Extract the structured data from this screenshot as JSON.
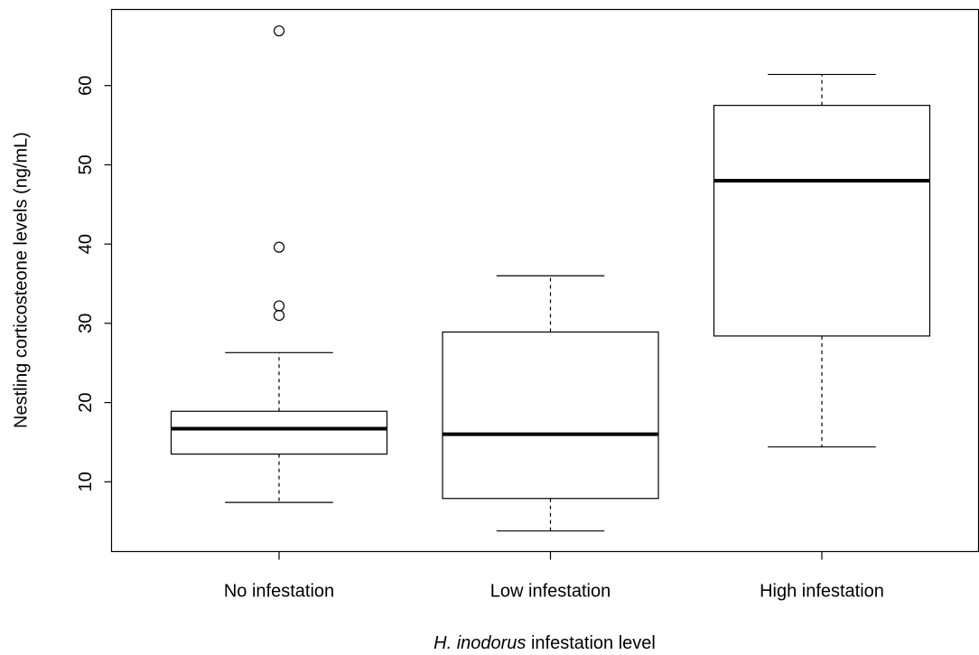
{
  "chart_data": {
    "type": "box",
    "y_label": "Nestling corticosteone levels (ng/mL)",
    "x_label": [
      "H. inodorus",
      "infestation level"
    ],
    "categories": [
      "No infestation",
      "Low infestation",
      "High infestation"
    ],
    "boxes": [
      {
        "whislo": 7.4,
        "q1": 13.5,
        "med": 16.7,
        "q3": 18.9,
        "whishi": 26.3,
        "fliers": [
          66.9,
          39.6,
          32.2,
          31.0
        ]
      },
      {
        "whislo": 3.8,
        "q1": 7.9,
        "med": 16.0,
        "q3": 28.9,
        "whishi": 36.0,
        "fliers": []
      },
      {
        "whislo": 14.4,
        "q1": 28.4,
        "med": 48.0,
        "q3": 57.5,
        "whishi": 61.4,
        "fliers": []
      }
    ],
    "color": "#000000",
    "fill": "#ffffff",
    "ylim": [
      1.2,
      69.6
    ],
    "yticks": [
      10,
      20,
      30,
      40,
      50,
      60
    ],
    "grid": false
  }
}
